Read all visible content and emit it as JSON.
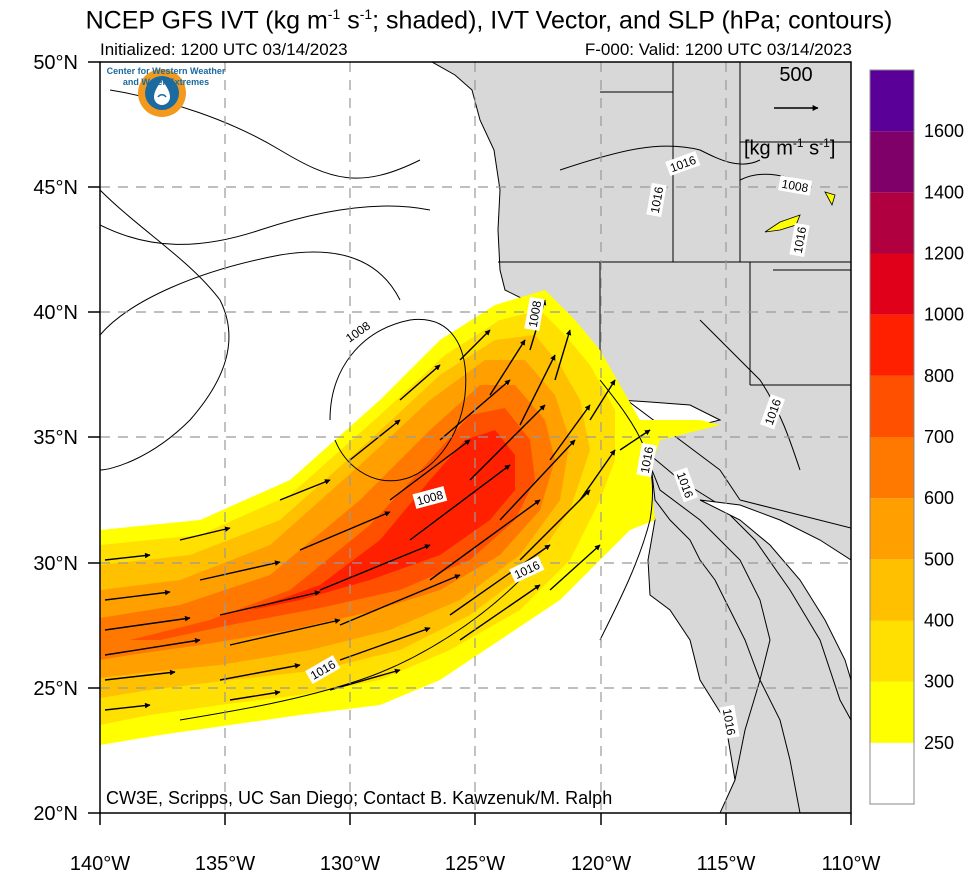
{
  "title": {
    "prefix": "NCEP GFS IVT (kg m",
    "exp1": "-1",
    "mid": " s",
    "exp2": "-1",
    "suffix": "; shaded), IVT Vector, and SLP (hPa; contours)"
  },
  "subtitle": {
    "initialized": "Initialized: 1200 UTC 03/14/2023",
    "valid": "F-000: Valid: 1200 UTC 03/14/2023"
  },
  "logo": {
    "line1": "Center for Western Weather",
    "line2": "and Water Extremes",
    "icon": "water-drop-logo-icon"
  },
  "credit": "CW3E, Scripps, UC San Diego; Contact B. Kawzenuk/M. Ralph",
  "reference_vector": {
    "value": "500",
    "units_prefix": "[kg m",
    "units_exp1": "-1",
    "units_mid": " s",
    "units_exp2": "-1",
    "units_suffix": "]"
  },
  "axes": {
    "lon_labels": [
      "140°W",
      "135°W",
      "130°W",
      "125°W",
      "120°W",
      "115°W",
      "110°W"
    ],
    "lat_labels": [
      "50°N",
      "45°N",
      "40°N",
      "35°N",
      "30°N",
      "25°N",
      "20°N"
    ],
    "lon_range": [
      -140,
      -110
    ],
    "lat_range": [
      20,
      50
    ]
  },
  "colorbar": {
    "levels": [
      "250",
      "300",
      "400",
      "500",
      "600",
      "700",
      "800",
      "1000",
      "1200",
      "1400",
      "1600"
    ],
    "colors": [
      "#ffffff",
      "#ffff00",
      "#ffe000",
      "#ffc000",
      "#ffa000",
      "#ff7800",
      "#ff5000",
      "#ff2000",
      "#e0001a",
      "#b00040",
      "#80006a",
      "#5a0098"
    ]
  },
  "slp_labels": [
    "1008",
    "1008",
    "1016",
    "1016",
    "1008",
    "1016",
    "1016",
    "1016",
    "1008",
    "1016",
    "1016",
    "1016"
  ],
  "colors": {
    "land": "#d8d8d8",
    "ocean": "#ffffff",
    "grid": "#999999"
  }
}
